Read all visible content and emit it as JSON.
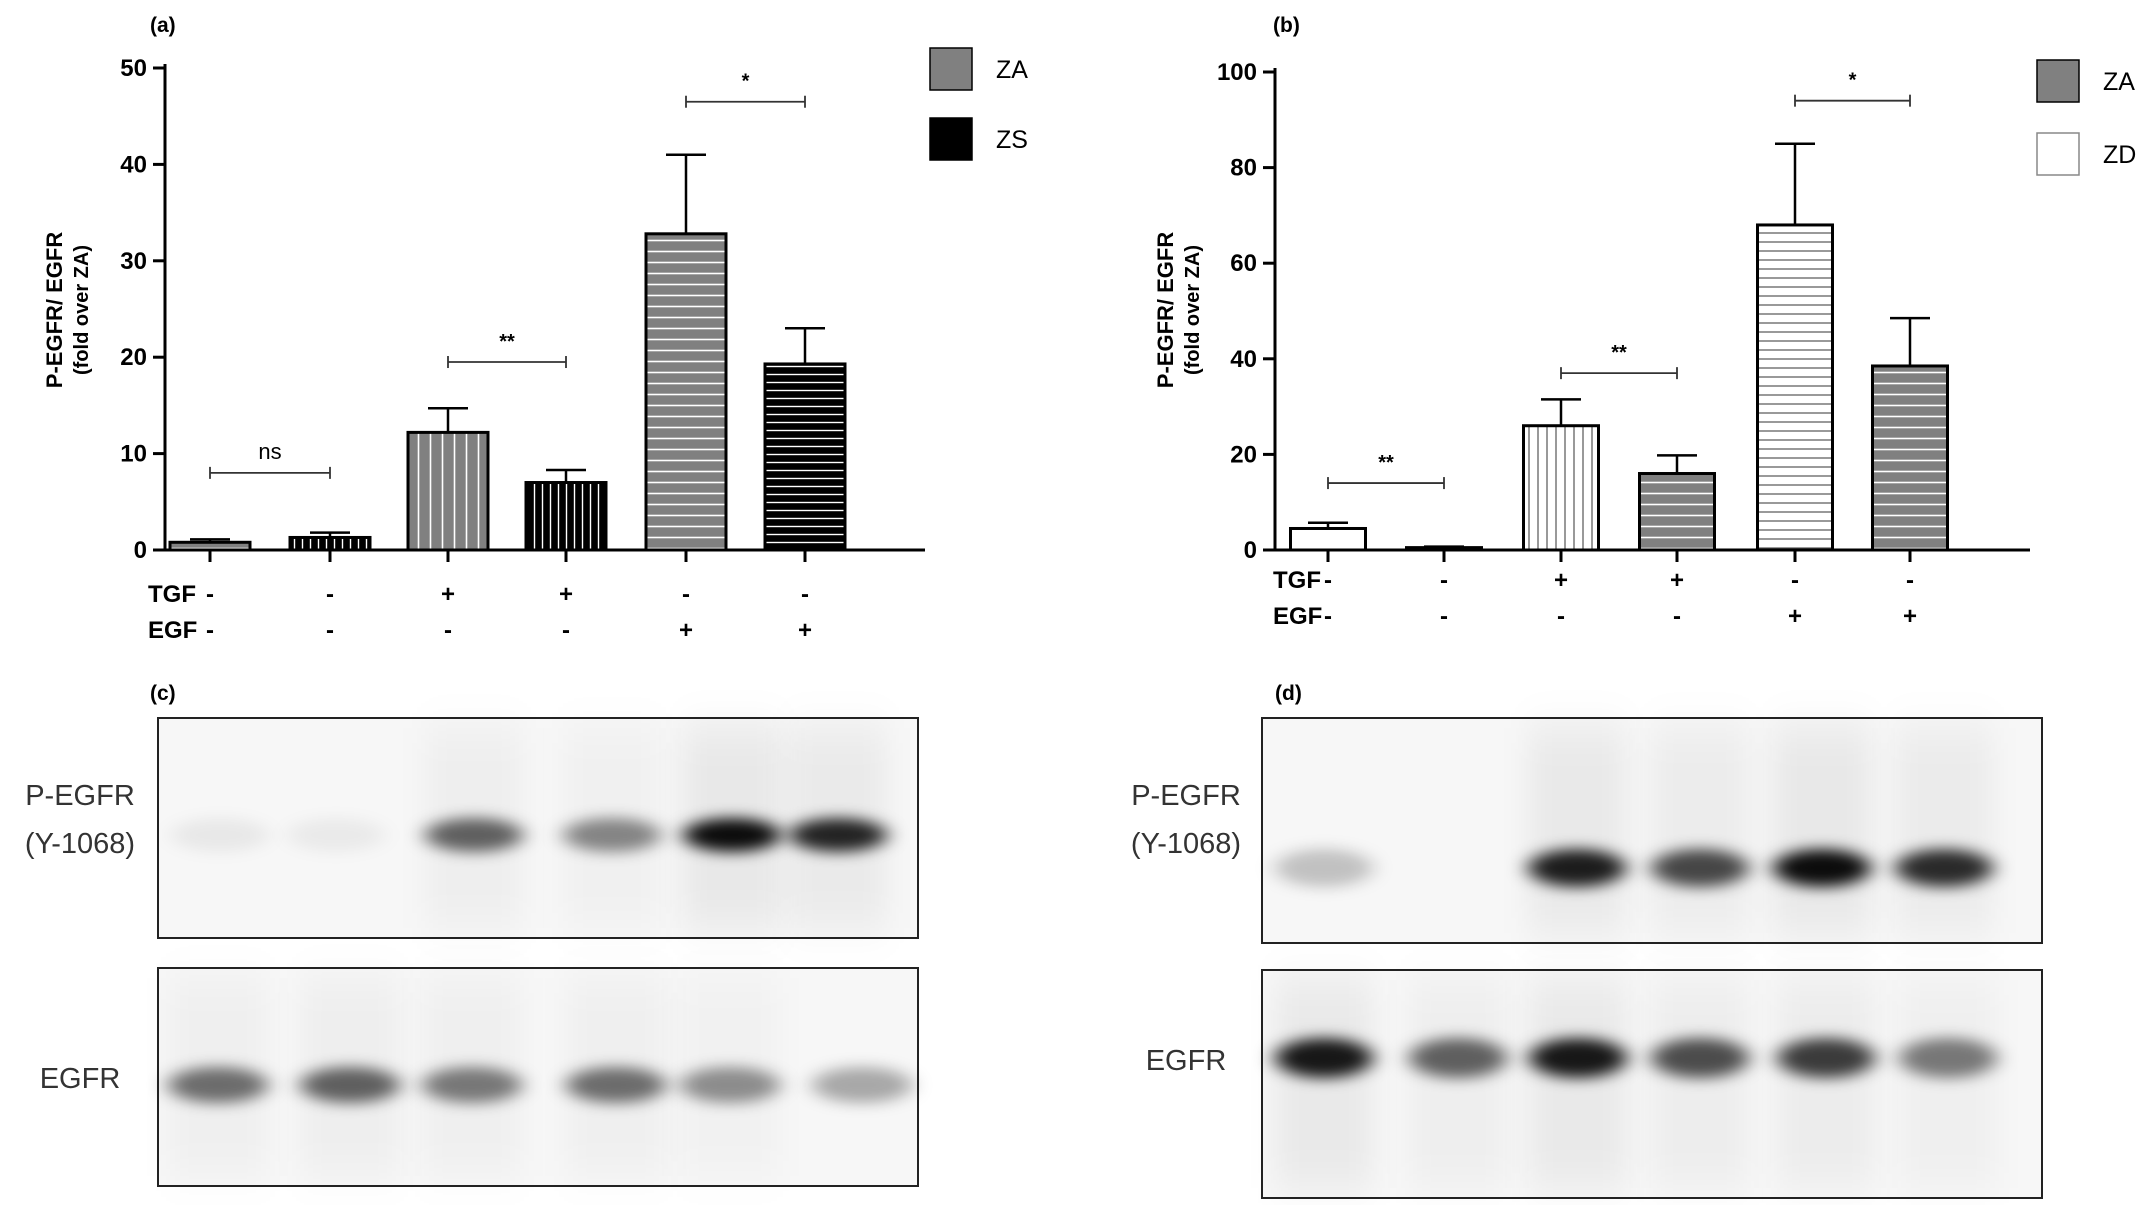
{
  "chart_data": [
    {
      "panel": "(a)",
      "type": "bar",
      "ylabel": "P-EGFR/ EGFR",
      "ylabel2": "(fold over ZA)",
      "ylim": [
        0,
        50
      ],
      "yticks": [
        "0",
        "10",
        "20",
        "30",
        "40",
        "50"
      ],
      "legend": [
        {
          "name": "ZA",
          "color": "#808080",
          "style": "solid-gray"
        },
        {
          "name": "ZS",
          "color": "#000000",
          "style": "solid-black"
        }
      ],
      "legend_position": "top-right",
      "conditions": {
        "rows": [
          {
            "label": "TGF",
            "values": [
              "-",
              "-",
              "+",
              "+",
              "-",
              "-"
            ]
          },
          {
            "label": "EGF",
            "values": [
              "-",
              "-",
              "-",
              "-",
              "+",
              "+"
            ]
          }
        ]
      },
      "bars": [
        {
          "series": "ZA",
          "value": 0.8,
          "error": 0.3,
          "pattern": "hstripe-gray"
        },
        {
          "series": "ZS",
          "value": 1.3,
          "error": 0.5,
          "pattern": "vstripe-black"
        },
        {
          "series": "ZA",
          "value": 12.2,
          "error": 2.5,
          "pattern": "vstripe-gray"
        },
        {
          "series": "ZS",
          "value": 7.0,
          "error": 1.3,
          "pattern": "vstripe-black"
        },
        {
          "series": "ZA",
          "value": 32.8,
          "error": 8.2,
          "pattern": "hstripe-gray"
        },
        {
          "series": "ZS",
          "value": 19.3,
          "error": 3.7,
          "pattern": "hstripe-black"
        }
      ],
      "significance": [
        {
          "from": 0,
          "to": 1,
          "y": 8,
          "label": "ns"
        },
        {
          "from": 2,
          "to": 3,
          "y": 19.5,
          "label": "**"
        },
        {
          "from": 4,
          "to": 5,
          "y": 46.5,
          "label": "*"
        }
      ]
    },
    {
      "panel": "(b)",
      "type": "bar",
      "ylabel": "P-EGFR/ EGFR",
      "ylabel2": "(fold over ZA)",
      "ylim": [
        0,
        100
      ],
      "yticks": [
        "0",
        "20",
        "40",
        "60",
        "80",
        "100"
      ],
      "legend": [
        {
          "name": "ZA",
          "color": "#808080",
          "style": "solid-gray"
        },
        {
          "name": "ZD",
          "color": "#ffffff",
          "style": "outline"
        }
      ],
      "legend_position": "top-right",
      "conditions": {
        "rows": [
          {
            "label": "TGF",
            "values": [
              "-",
              "-",
              "+",
              "+",
              "-",
              "-"
            ]
          },
          {
            "label": "EGF",
            "values": [
              "-",
              "-",
              "-",
              "-",
              "+",
              "+"
            ]
          }
        ]
      },
      "bars": [
        {
          "series": "ZD",
          "value": 4.5,
          "error": 1.2,
          "pattern": "white"
        },
        {
          "series": "ZA",
          "value": 0.5,
          "error": 0.2,
          "pattern": "white"
        },
        {
          "series": "ZD",
          "value": 26.0,
          "error": 5.5,
          "pattern": "vstripe-white"
        },
        {
          "series": "ZA",
          "value": 16.0,
          "error": 3.8,
          "pattern": "hstripe-gray"
        },
        {
          "series": "ZD",
          "value": 68.0,
          "error": 17.0,
          "pattern": "hstripe-white"
        },
        {
          "series": "ZA",
          "value": 38.5,
          "error": 10.0,
          "pattern": "hstripe-gray"
        }
      ],
      "significance": [
        {
          "from": 0,
          "to": 1,
          "y": 14,
          "label": "**"
        },
        {
          "from": 2,
          "to": 3,
          "y": 37,
          "label": "**"
        },
        {
          "from": 4,
          "to": 5,
          "y": 94,
          "label": "*"
        }
      ]
    }
  ],
  "blots": [
    {
      "panel": "(c)",
      "rows": [
        {
          "label_lines": [
            "P-EGFR",
            "(Y-1068)"
          ],
          "intensities": [
            0.06,
            0.05,
            0.6,
            0.45,
            0.95,
            0.85
          ]
        },
        {
          "label_lines": [
            "EGFR"
          ],
          "intensities": [
            0.55,
            0.6,
            0.5,
            0.55,
            0.42,
            0.32
          ]
        }
      ]
    },
    {
      "panel": "(d)",
      "rows": [
        {
          "label_lines": [
            "P-EGFR",
            "(Y-1068)"
          ],
          "intensities": [
            0.22,
            0.0,
            0.88,
            0.7,
            0.95,
            0.82
          ]
        },
        {
          "label_lines": [
            "EGFR"
          ],
          "intensities": [
            0.9,
            0.6,
            0.9,
            0.68,
            0.75,
            0.5
          ]
        }
      ]
    }
  ],
  "colors": {
    "gray": "#808080",
    "black": "#000000",
    "white": "#ffffff"
  }
}
